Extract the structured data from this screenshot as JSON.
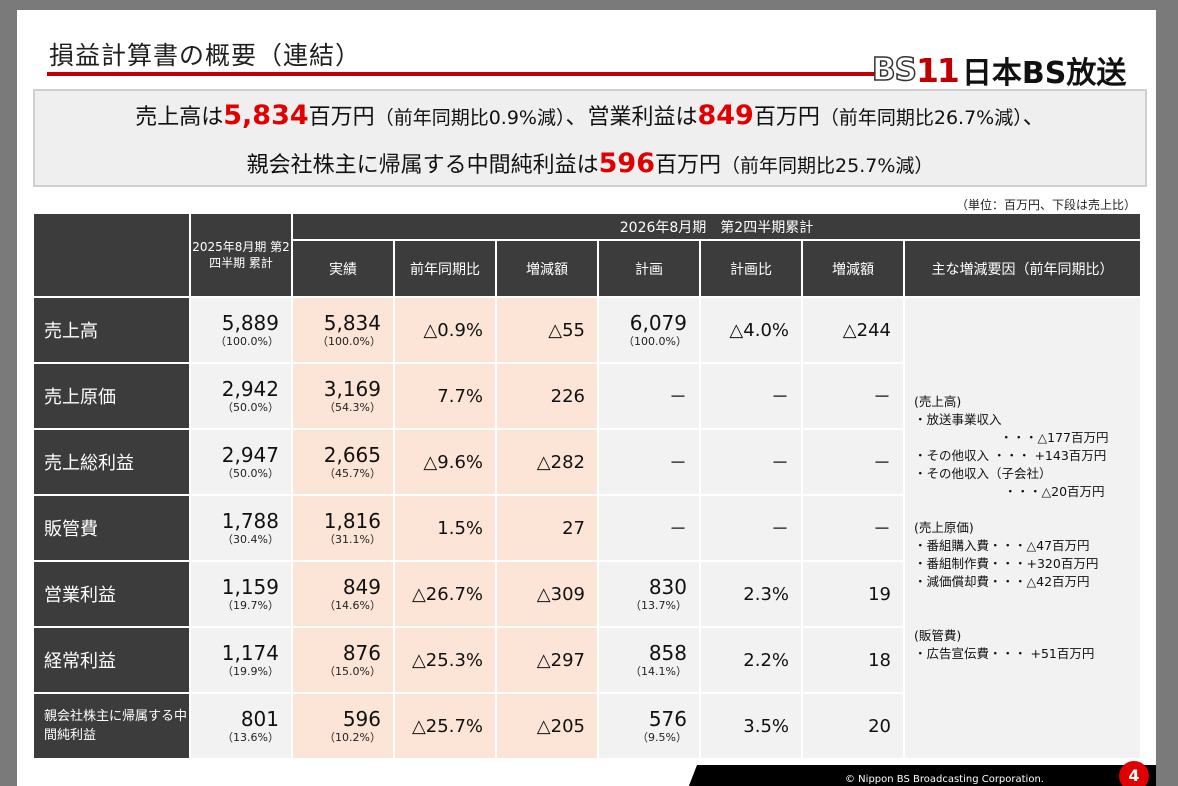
{
  "header": {
    "title": "損益計算書の概要（連結）"
  },
  "logo": {
    "bs": "BS",
    "eleven": "11",
    "text": "日本BS放送"
  },
  "summary": {
    "line1": [
      {
        "t": "売上高は"
      },
      {
        "t": "5,834",
        "hl": true
      },
      {
        "t": "百万円"
      },
      {
        "t": "（前年同期比0.9%減）",
        "pc": true
      },
      {
        "t": "、営業利益は"
      },
      {
        "t": "849",
        "hl": true
      },
      {
        "t": "百万円"
      },
      {
        "t": "（前年同期比26.7%減）",
        "pc": true
      },
      {
        "t": "、"
      }
    ],
    "line2": [
      {
        "t": "親会社株主に帰属する中間純利益は"
      },
      {
        "t": "596",
        "hl": true
      },
      {
        "t": "百万円"
      },
      {
        "t": "（前年同期比25.7%減）",
        "pc": true
      }
    ]
  },
  "unit_note": "（単位：百万円、下段は売上比）",
  "table": {
    "prev_header": "2025年8月期 第2四半期 累計",
    "curr_header": "2026年8月期　第2四半期累計",
    "col_headers": [
      "実績",
      "前年同期比",
      "増減額",
      "計画",
      "計画比",
      "増減額"
    ],
    "factor_header": "主な増減要因（前年同期比）",
    "rows": [
      {
        "label": "売上高",
        "prev": "5,889",
        "prev_sub": "（100.0%）",
        "actual": "5,834",
        "actual_sub": "（100.0%）",
        "yoy": "△0.9%",
        "diff": "△55",
        "plan": "6,079",
        "plan_sub": "（100.0%）",
        "plan_ratio": "△4.0%",
        "plan_diff": "△244"
      },
      {
        "label": "売上原価",
        "prev": "2,942",
        "prev_sub": "（50.0%）",
        "actual": "3,169",
        "actual_sub": "（54.3%）",
        "yoy": "7.7%",
        "diff": "226",
        "plan": "－",
        "plan_sub": "",
        "plan_ratio": "－",
        "plan_diff": "－"
      },
      {
        "label": "売上総利益",
        "prev": "2,947",
        "prev_sub": "（50.0%）",
        "actual": "2,665",
        "actual_sub": "（45.7%）",
        "yoy": "△9.6%",
        "diff": "△282",
        "plan": "－",
        "plan_sub": "",
        "plan_ratio": "－",
        "plan_diff": "－"
      },
      {
        "label": "販管費",
        "prev": "1,788",
        "prev_sub": "（30.4%）",
        "actual": "1,816",
        "actual_sub": "（31.1%）",
        "yoy": "1.5%",
        "diff": "27",
        "plan": "－",
        "plan_sub": "",
        "plan_ratio": "－",
        "plan_diff": "－"
      },
      {
        "label": "営業利益",
        "prev": "1,159",
        "prev_sub": "（19.7%）",
        "actual": "849",
        "actual_sub": "（14.6%）",
        "yoy": "△26.7%",
        "diff": "△309",
        "plan": "830",
        "plan_sub": "（13.7%）",
        "plan_ratio": "2.3%",
        "plan_diff": "19"
      },
      {
        "label": "経常利益",
        "prev": "1,174",
        "prev_sub": "（19.9%）",
        "actual": "876",
        "actual_sub": "（15.0%）",
        "yoy": "△25.3%",
        "diff": "△297",
        "plan": "858",
        "plan_sub": "（14.1%）",
        "plan_ratio": "2.2%",
        "plan_diff": "18"
      },
      {
        "label": "親会社株主に帰属する中間純利益",
        "prev": "801",
        "prev_sub": "（13.6%）",
        "actual": "596",
        "actual_sub": "（10.2%）",
        "yoy": "△25.7%",
        "diff": "△205",
        "plan": "576",
        "plan_sub": "（9.5%）",
        "plan_ratio": "3.5%",
        "plan_diff": "20"
      }
    ],
    "factors": {
      "sales_head": "(売上高)",
      "sales_1": "・放送事業収入",
      "sales_1v": "・・・△177百万円",
      "sales_2": "・その他収入 ・・・ +143百万円",
      "sales_3": "・その他収入（子会社）",
      "sales_3v": "・・・△20百万円",
      "cost_head": "(売上原価)",
      "cost_1": "・番組購入費・・・△47百万円",
      "cost_2": "・番組制作費・・・+320百万円",
      "cost_3": "・減価償却費・・・△42百万円",
      "sga_head": "(販管費)",
      "sga_1": "・広告宣伝費・・・ +51百万円"
    }
  },
  "footer": {
    "copyright": "© Nippon BS Broadcasting Corporation.",
    "page": "4"
  }
}
